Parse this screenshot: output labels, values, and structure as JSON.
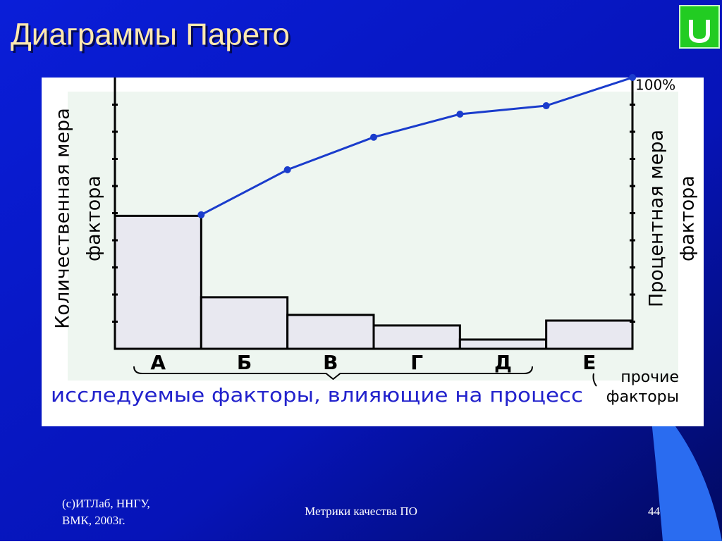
{
  "slide": {
    "title": "Диаграммы Парето",
    "footer_left": [
      "(c)ИТЛаб, ННГУ,",
      "ВМК, 2003г."
    ],
    "footer_center": "Метрики  качества ПО",
    "page_number": "44"
  },
  "chart_data": {
    "type": "pareto",
    "categories": [
      "А",
      "Б",
      "В",
      "Г",
      "Д",
      "Е"
    ],
    "values": [
      4.9,
      1.9,
      1.25,
      0.86,
      0.34,
      1.04
    ],
    "cumulative_values": [
      49.4,
      66,
      78,
      86.5,
      89.6,
      100
    ],
    "color": "#e8e8f0",
    "line_color": "#1a3ccc",
    "ylim": [
      0,
      10
    ],
    "yticks": [
      1,
      2,
      3,
      4,
      5,
      6,
      7,
      8,
      9
    ],
    "y2lim": [
      0,
      100
    ],
    "y2ticks": [
      {
        "value": 100,
        "label": "100%"
      }
    ],
    "y_label": [
      "Количественная мера",
      "фактора"
    ],
    "y2_label": [
      "Процентная мера",
      "фактора"
    ],
    "group_label": "исследуемые факторы, влияющие на процесс",
    "other_label": [
      "прочие",
      "факторы"
    ]
  }
}
